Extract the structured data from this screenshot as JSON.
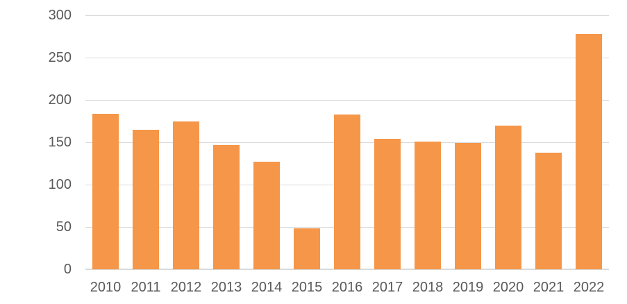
{
  "chart_data": {
    "type": "bar",
    "title": "",
    "xlabel": "",
    "ylabel": "",
    "categories": [
      "2010",
      "2011",
      "2012",
      "2013",
      "2014",
      "2015",
      "2016",
      "2017",
      "2018",
      "2019",
      "2020",
      "2021",
      "2022"
    ],
    "values": [
      184,
      165,
      175,
      147,
      127,
      48,
      183,
      154,
      151,
      149,
      170,
      138,
      278
    ],
    "series": [
      {
        "name": "",
        "values": [
          184,
          165,
          175,
          147,
          127,
          48,
          183,
          154,
          151,
          149,
          170,
          138,
          278
        ]
      }
    ],
    "ylim": [
      0,
      300
    ],
    "yticks": [
      0,
      50,
      100,
      150,
      200,
      250,
      300
    ],
    "grid": true,
    "legend": "none",
    "colors": {
      "bar": "#F59649",
      "gridline": "#D9D9D9",
      "axis_line": "#D9D9D9",
      "tick_label": "#595959",
      "background": "#FFFFFF"
    }
  }
}
